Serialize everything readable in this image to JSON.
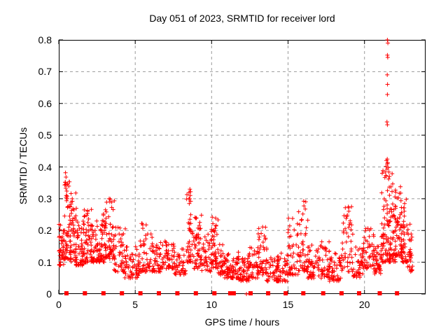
{
  "chart_data": {
    "type": "scatter",
    "title": "Day 051 of 2023, SRMTID for receiver lord",
    "xlabel": "GPS time / hours",
    "ylabel": "SRMTID / TECUs",
    "xlim": [
      0,
      24
    ],
    "ylim": [
      0,
      0.8
    ],
    "xticks": [
      0,
      5,
      10,
      15,
      20
    ],
    "xtick_labels": [
      "0",
      "5",
      "10",
      "15",
      "20"
    ],
    "yticks": [
      0,
      0.1,
      0.2,
      0.3,
      0.4,
      0.5,
      0.6,
      0.7,
      0.8
    ],
    "ytick_labels": [
      "0",
      "0.1",
      "0.2",
      "0.3",
      "0.4",
      "0.5",
      "0.6",
      "0.7",
      "0.8"
    ],
    "grid": true,
    "legend": "none",
    "marker": "plus",
    "marker_color": "#ff0000",
    "grid_color": "#9a9a9a",
    "axis_color": "#000000",
    "background_color": "#ffffff",
    "seed": 20230051,
    "clusters": [
      [
        0.0,
        0.35,
        40,
        0.09,
        0.25
      ],
      [
        0.35,
        0.75,
        48,
        0.11,
        0.36
      ],
      [
        0.7,
        1.15,
        50,
        0.1,
        0.32
      ],
      [
        1.1,
        1.6,
        45,
        0.09,
        0.23
      ],
      [
        1.55,
        2.15,
        55,
        0.1,
        0.28
      ],
      [
        2.1,
        2.7,
        50,
        0.1,
        0.24
      ],
      [
        2.65,
        3.15,
        45,
        0.1,
        0.26
      ],
      [
        3.05,
        3.65,
        55,
        0.11,
        0.3
      ],
      [
        3.6,
        4.35,
        45,
        0.07,
        0.21
      ],
      [
        4.3,
        5.25,
        55,
        0.05,
        0.15
      ],
      [
        5.2,
        6.1,
        55,
        0.07,
        0.23
      ],
      [
        6.1,
        6.65,
        40,
        0.07,
        0.17
      ],
      [
        6.6,
        7.55,
        55,
        0.08,
        0.17
      ],
      [
        7.5,
        8.35,
        45,
        0.06,
        0.15
      ],
      [
        8.35,
        8.75,
        40,
        0.1,
        0.32
      ],
      [
        8.75,
        9.35,
        50,
        0.08,
        0.26
      ],
      [
        9.3,
        10.0,
        40,
        0.07,
        0.19
      ],
      [
        9.95,
        10.45,
        45,
        0.08,
        0.25
      ],
      [
        10.4,
        11.1,
        50,
        0.05,
        0.16
      ],
      [
        11.05,
        11.75,
        45,
        0.05,
        0.14
      ],
      [
        11.7,
        12.45,
        50,
        0.04,
        0.12
      ],
      [
        12.4,
        13.05,
        45,
        0.05,
        0.15
      ],
      [
        13.0,
        13.6,
        45,
        0.06,
        0.22
      ],
      [
        13.55,
        14.35,
        45,
        0.04,
        0.12
      ],
      [
        14.3,
        15.0,
        45,
        0.04,
        0.13
      ],
      [
        14.95,
        15.65,
        45,
        0.06,
        0.27
      ],
      [
        15.6,
        16.35,
        50,
        0.07,
        0.3
      ],
      [
        16.3,
        17.05,
        45,
        0.05,
        0.16
      ],
      [
        17.0,
        17.75,
        45,
        0.05,
        0.18
      ],
      [
        17.7,
        18.45,
        45,
        0.04,
        0.13
      ],
      [
        18.4,
        19.25,
        50,
        0.07,
        0.28
      ],
      [
        19.2,
        19.95,
        40,
        0.05,
        0.16
      ],
      [
        19.9,
        20.65,
        45,
        0.08,
        0.22
      ],
      [
        20.6,
        21.1,
        40,
        0.06,
        0.17
      ],
      [
        21.1,
        21.65,
        65,
        0.1,
        0.4
      ],
      [
        21.6,
        22.05,
        55,
        0.1,
        0.38
      ],
      [
        22.0,
        22.45,
        50,
        0.12,
        0.34
      ],
      [
        22.4,
        22.8,
        45,
        0.1,
        0.3
      ],
      [
        22.75,
        23.15,
        30,
        0.07,
        0.22
      ]
    ],
    "high_points": [
      [
        21.5,
        0.8
      ],
      [
        21.53,
        0.79
      ],
      [
        21.5,
        0.752
      ],
      [
        21.52,
        0.745
      ],
      [
        21.49,
        0.69
      ],
      [
        21.51,
        0.66
      ],
      [
        21.5,
        0.628
      ],
      [
        21.47,
        0.542
      ],
      [
        21.5,
        0.533
      ],
      [
        21.49,
        0.425
      ],
      [
        21.52,
        0.413
      ],
      [
        21.44,
        0.42
      ],
      [
        21.5,
        0.41
      ],
      [
        21.41,
        0.402
      ],
      [
        21.56,
        0.398
      ],
      [
        21.6,
        0.384
      ],
      [
        21.63,
        0.37
      ],
      [
        21.58,
        0.362
      ],
      [
        0.44,
        0.382
      ],
      [
        0.47,
        0.368
      ],
      [
        0.43,
        0.352
      ],
      [
        0.5,
        0.345
      ],
      [
        0.46,
        0.333
      ],
      [
        0.52,
        0.324
      ],
      [
        0.49,
        0.31
      ],
      [
        0.55,
        0.3
      ],
      [
        8.58,
        0.33
      ],
      [
        8.62,
        0.322
      ],
      [
        8.6,
        0.31
      ],
      [
        8.56,
        0.3
      ],
      [
        8.63,
        0.292
      ],
      [
        3.3,
        0.3
      ],
      [
        3.34,
        0.29
      ]
    ],
    "zero_markers": {
      "hours": [
        0.5,
        1.71,
        2.92,
        4.13,
        5.34,
        6.55,
        7.76,
        8.97,
        10.18,
        11.33,
        12.55,
        13.7,
        14.85,
        16.0,
        17.3,
        18.5,
        19.65,
        21.0,
        22.13
      ],
      "wide_hours": [
        11.33
      ],
      "plus_hours": [
        12.28
      ]
    }
  }
}
